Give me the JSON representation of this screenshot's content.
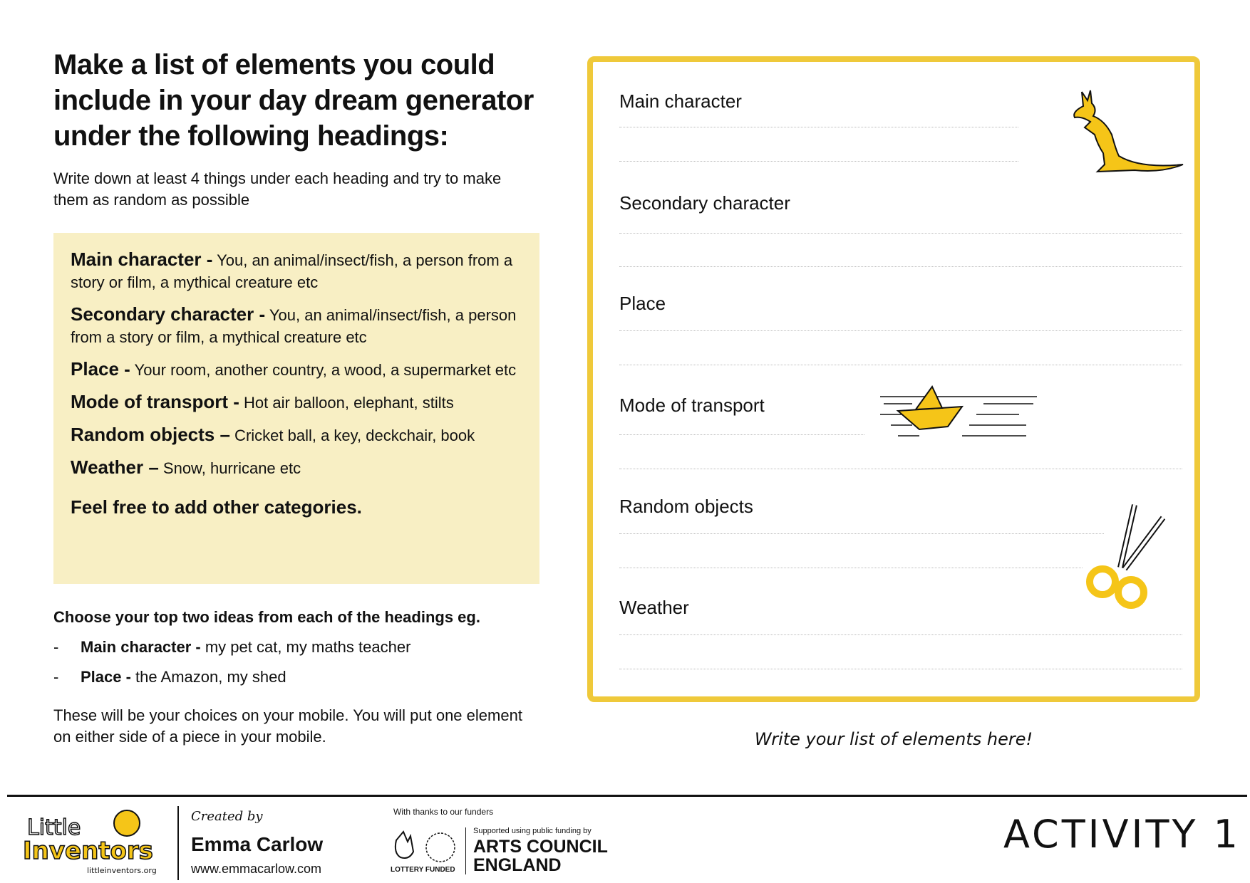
{
  "heading": "Make a list of elements you could include in your day dream generator under the following headings:",
  "intro": "Write down at least 4 things under each heading and try to make them as random as possible",
  "categories": [
    {
      "name": "Main character -",
      "desc": " You, an animal/insect/fish, a person from a story or film, a mythical creature etc"
    },
    {
      "name": "Secondary character -",
      "desc": " You, an animal/insect/fish, a person from a story or film, a mythical creature etc"
    },
    {
      "name": "Place -",
      "desc": " Your room, another country, a wood, a supermarket etc"
    },
    {
      "name": "Mode of transport  -",
      "desc": " Hot air balloon, elephant, stilts"
    },
    {
      "name": "Random objects –",
      "desc": "  Cricket ball, a key, deckchair, book"
    },
    {
      "name": "Weather –",
      "desc": " Snow, hurricane etc"
    }
  ],
  "feel_free": "Feel free to add other categories.",
  "choose": {
    "heading": "Choose your top two ideas from each of the headings eg.",
    "examples": [
      {
        "dash": "-",
        "label": "Main character -",
        "text": " my pet cat, my maths teacher"
      },
      {
        "dash": "-",
        "label": "Place -",
        "text": " the Amazon, my shed"
      }
    ]
  },
  "closing": "These will be your choices on your mobile. You will put one element on either side of  a piece in your mobile.",
  "write_box": {
    "labels": [
      "Main character",
      "Secondary character",
      "Place",
      "Mode of transport",
      "Random objects",
      "Weather"
    ],
    "border_color": "#efc93a"
  },
  "caption": "Write your list of elements here!",
  "footer": {
    "logo_text": "Little Inventors",
    "logo_url": "littleinventors.org",
    "created_by": "Created by",
    "author": "Emma Carlow",
    "website": "www.emmacarlow.com",
    "thanks": "With thanks to our funders",
    "lottery": "LOTTERY FUNDED",
    "supported": "Supported using public funding by",
    "ace": "ARTS COUNCIL ENGLAND",
    "activity": "ACTIVITY 1"
  },
  "colors": {
    "accent": "#efc93a",
    "box_bg": "#f8efc4"
  }
}
